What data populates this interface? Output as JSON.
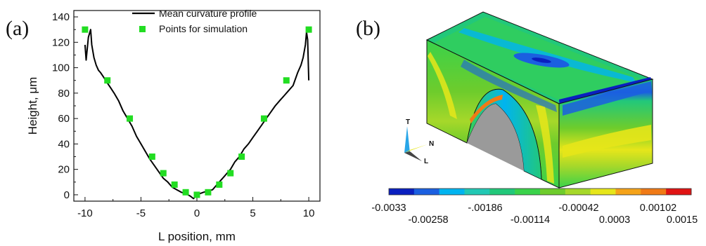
{
  "panels": {
    "a_label": "(a)",
    "b_label": "(b)"
  },
  "chart_data": {
    "type": "line",
    "xlabel": "L position, mm",
    "ylabel": "Height, μm",
    "xlim": [
      -11,
      11
    ],
    "ylim": [
      -5,
      145
    ],
    "xticks": [
      -10,
      -5,
      0,
      5,
      10
    ],
    "yticks": [
      0,
      20,
      40,
      60,
      80,
      100,
      120,
      140
    ],
    "grid": false,
    "legend_position": "top-right",
    "series": [
      {
        "name": "Mean curvature profile",
        "kind": "line",
        "color": "#000000",
        "x": [
          -10.0,
          -9.9,
          -9.7,
          -9.5,
          -9.4,
          -9.2,
          -9.0,
          -8.8,
          -8.6,
          -8.3,
          -8.0,
          -7.7,
          -7.4,
          -7.0,
          -6.6,
          -6.2,
          -5.8,
          -5.4,
          -5.0,
          -4.6,
          -4.2,
          -3.8,
          -3.4,
          -3.0,
          -2.6,
          -2.2,
          -1.8,
          -1.4,
          -1.0,
          -0.6,
          -0.3,
          0.0,
          0.3,
          0.6,
          1.0,
          1.4,
          1.8,
          2.2,
          2.6,
          3.0,
          3.4,
          3.8,
          4.2,
          4.6,
          5.0,
          5.4,
          5.8,
          6.2,
          6.6,
          7.0,
          7.4,
          7.8,
          8.2,
          8.6,
          9.0,
          9.3,
          9.5,
          9.7,
          9.8,
          9.9,
          10.0
        ],
        "y": [
          118,
          106,
          124,
          130,
          118,
          108,
          102,
          98,
          96,
          92,
          88,
          84,
          80,
          74,
          66,
          60,
          54,
          46,
          40,
          34,
          28,
          23,
          18,
          13,
          10,
          6,
          4,
          2,
          1,
          -1,
          -3,
          0,
          1,
          2,
          3,
          4,
          8,
          12,
          16,
          20,
          26,
          30,
          36,
          40,
          45,
          50,
          55,
          60,
          65,
          70,
          74,
          78,
          82,
          86,
          96,
          102,
          108,
          118,
          128,
          122,
          90
        ]
      },
      {
        "name": "Points for simulation",
        "kind": "scatter",
        "color": "#22dd22",
        "x": [
          -10,
          -8,
          -6,
          -4,
          -3,
          -2,
          -1,
          0,
          1,
          2,
          3,
          4,
          6,
          8,
          10
        ],
        "y": [
          130,
          90,
          60,
          30,
          17,
          8,
          2,
          0,
          2,
          8,
          17,
          30,
          60,
          90,
          130
        ]
      }
    ]
  },
  "fea_model": {
    "triad": {
      "t": "T",
      "n": "N",
      "l": "L"
    },
    "colorbar": {
      "colors": [
        "#0a1fbf",
        "#1b5fe0",
        "#00b4f0",
        "#22c8b4",
        "#22c87a",
        "#3ad24a",
        "#6ecc2c",
        "#a6d82a",
        "#e6e61a",
        "#f5a319",
        "#f07a16",
        "#e01414"
      ],
      "labels_top": [
        "-0.0033",
        "-.00186",
        "-0.00042",
        "0.00102"
      ],
      "labels_bottom": [
        "-0.00258",
        "-0.00114",
        "0.0003",
        "0.0015"
      ]
    }
  }
}
